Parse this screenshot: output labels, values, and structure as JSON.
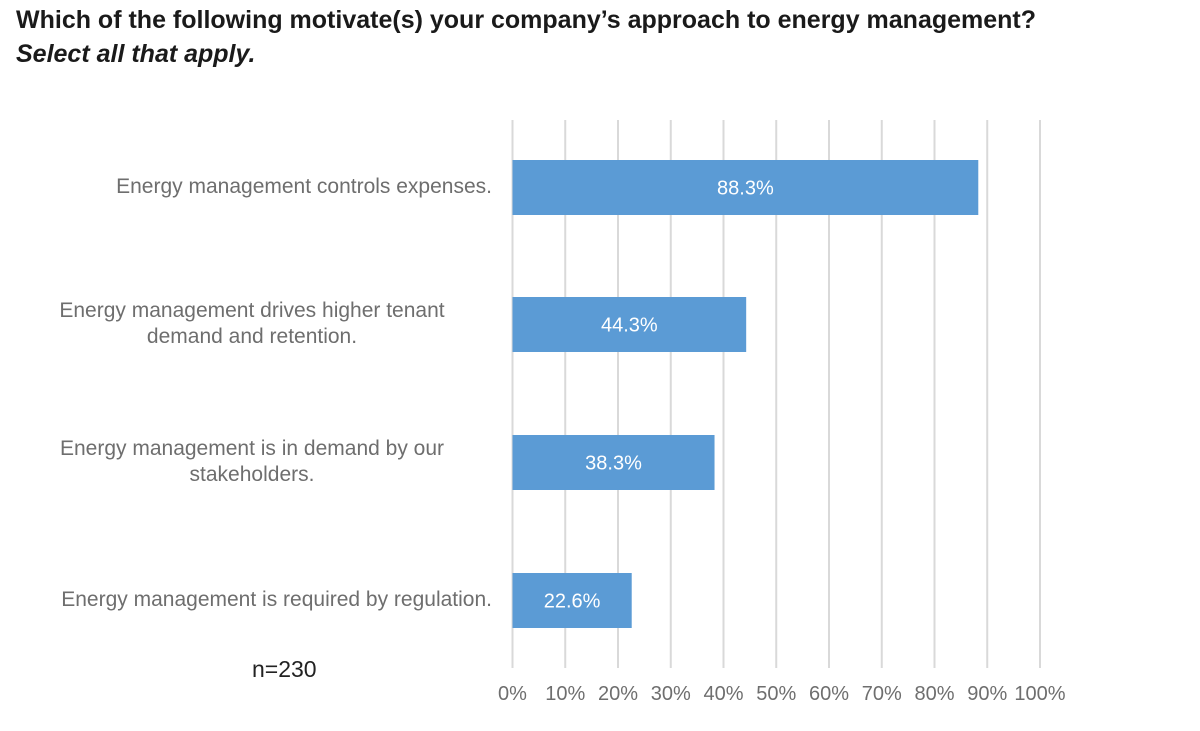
{
  "header": {
    "title": "Which of the following motivate(s) your company’s approach to energy management?",
    "subtitle": "Select all that apply."
  },
  "note": "n=230",
  "colors": {
    "bar": "#5b9bd5",
    "grid": "#d9d9d9",
    "bar_label": "#ffffff",
    "tick_label": "#6e6e6e"
  },
  "chart_data": {
    "type": "bar",
    "orientation": "horizontal",
    "title": "Which of the following motivate(s) your company’s approach to energy management?",
    "subtitle": "Select all that apply.",
    "xlabel": "",
    "ylabel": "",
    "categories": [
      "Energy management controls expenses.",
      "Energy management drives higher tenant demand and retention.",
      "Energy management is in demand by our stakeholders.",
      "Energy management is required by regulation."
    ],
    "category_lines": [
      [
        "Energy management controls expenses."
      ],
      [
        "Energy management drives higher tenant",
        "demand and retention."
      ],
      [
        "Energy management is in demand by our",
        "stakeholders."
      ],
      [
        "Energy management is required by regulation."
      ]
    ],
    "values": [
      88.3,
      44.3,
      38.3,
      22.6
    ],
    "data_labels": [
      "88.3%",
      "44.3%",
      "38.3%",
      "22.6%"
    ],
    "xlim": [
      0,
      100
    ],
    "x_ticks": [
      0,
      10,
      20,
      30,
      40,
      50,
      60,
      70,
      80,
      90,
      100
    ],
    "x_tick_labels": [
      "0%",
      "10%",
      "20%",
      "30%",
      "40%",
      "50%",
      "60%",
      "70%",
      "80%",
      "90%",
      "100%"
    ],
    "grid": true,
    "legend": "none"
  }
}
